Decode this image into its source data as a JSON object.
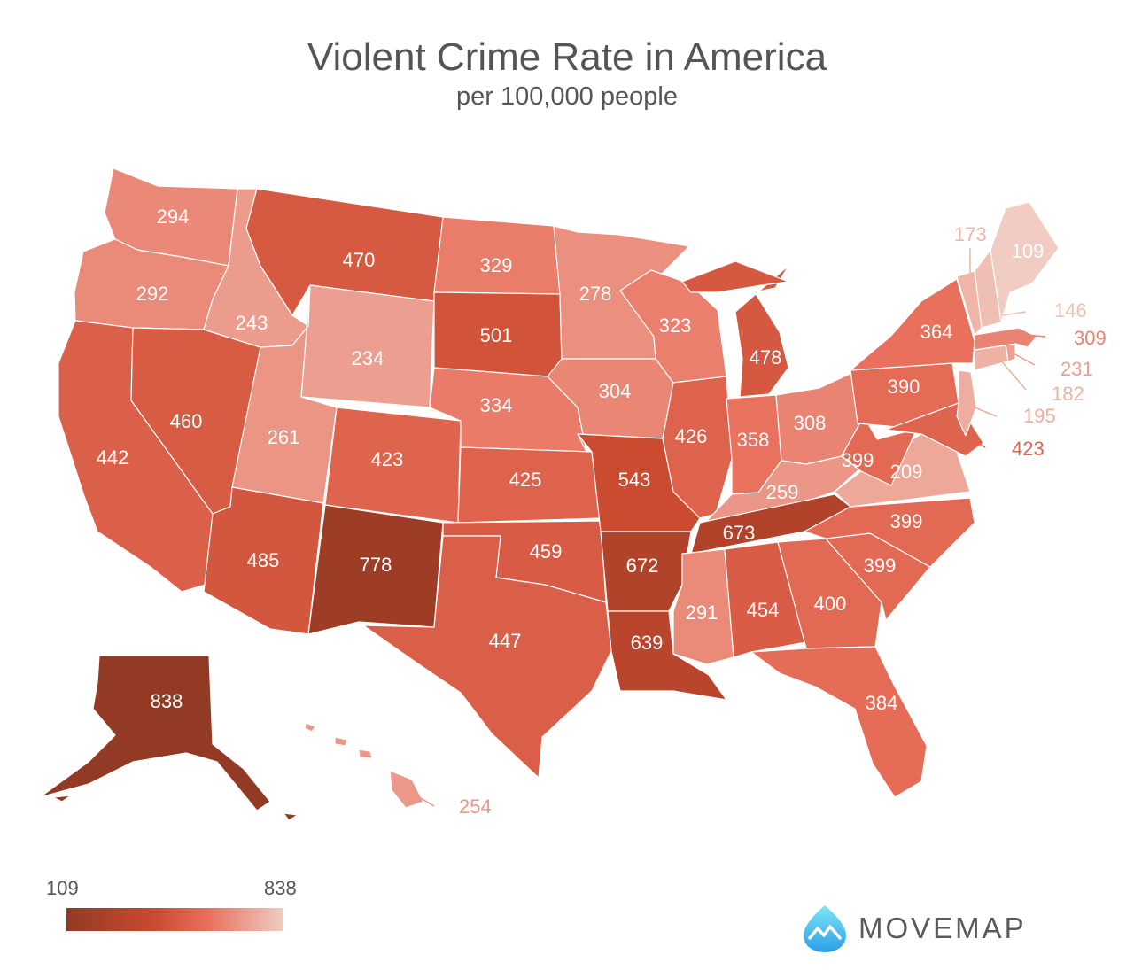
{
  "title": "Violent Crime Rate in America",
  "subtitle": "per 100,000 people",
  "legend": {
    "min_label": "109",
    "max_label": "838",
    "colors": [
      "#923a24",
      "#c94a2f",
      "#e8705c",
      "#f0ccc2"
    ]
  },
  "brand": {
    "name": "MOVEMAP",
    "logo_icon": "mountain-drop-icon"
  },
  "map_data": {
    "type": "choropleth",
    "unit": "violent crimes per 100,000 people",
    "states": [
      {
        "code": "WA",
        "value": 294
      },
      {
        "code": "OR",
        "value": 292
      },
      {
        "code": "CA",
        "value": 442
      },
      {
        "code": "NV",
        "value": 460
      },
      {
        "code": "ID",
        "value": 243
      },
      {
        "code": "MT",
        "value": 470
      },
      {
        "code": "WY",
        "value": 234
      },
      {
        "code": "UT",
        "value": 261
      },
      {
        "code": "AZ",
        "value": 485
      },
      {
        "code": "CO",
        "value": 423
      },
      {
        "code": "NM",
        "value": 778
      },
      {
        "code": "ND",
        "value": 329
      },
      {
        "code": "SD",
        "value": 501
      },
      {
        "code": "NE",
        "value": 334
      },
      {
        "code": "KS",
        "value": 425
      },
      {
        "code": "OK",
        "value": 459
      },
      {
        "code": "TX",
        "value": 447
      },
      {
        "code": "MN",
        "value": 278
      },
      {
        "code": "IA",
        "value": 304
      },
      {
        "code": "MO",
        "value": 543
      },
      {
        "code": "AR",
        "value": 672
      },
      {
        "code": "LA",
        "value": 639
      },
      {
        "code": "WI",
        "value": 323
      },
      {
        "code": "IL",
        "value": 426
      },
      {
        "code": "MI",
        "value": 478
      },
      {
        "code": "IN",
        "value": 358
      },
      {
        "code": "OH",
        "value": 308
      },
      {
        "code": "KY",
        "value": 259
      },
      {
        "code": "TN",
        "value": 673
      },
      {
        "code": "MS",
        "value": 291
      },
      {
        "code": "AL",
        "value": 454
      },
      {
        "code": "GA",
        "value": 400
      },
      {
        "code": "FL",
        "value": 384
      },
      {
        "code": "SC",
        "value": 399
      },
      {
        "code": "NC",
        "value": 399
      },
      {
        "code": "VA",
        "value": 209
      },
      {
        "code": "WV",
        "value": 399
      },
      {
        "code": "PA",
        "value": 390
      },
      {
        "code": "NY",
        "value": 364
      },
      {
        "code": "MD",
        "value": 423
      },
      {
        "code": "NJ",
        "value": 195
      },
      {
        "code": "CT",
        "value": 182
      },
      {
        "code": "RI",
        "value": 231
      },
      {
        "code": "MA",
        "value": 309
      },
      {
        "code": "NH",
        "value": 146
      },
      {
        "code": "VT",
        "value": 173
      },
      {
        "code": "ME",
        "value": 109
      },
      {
        "code": "AK",
        "value": 838
      },
      {
        "code": "HI",
        "value": 254
      }
    ]
  }
}
